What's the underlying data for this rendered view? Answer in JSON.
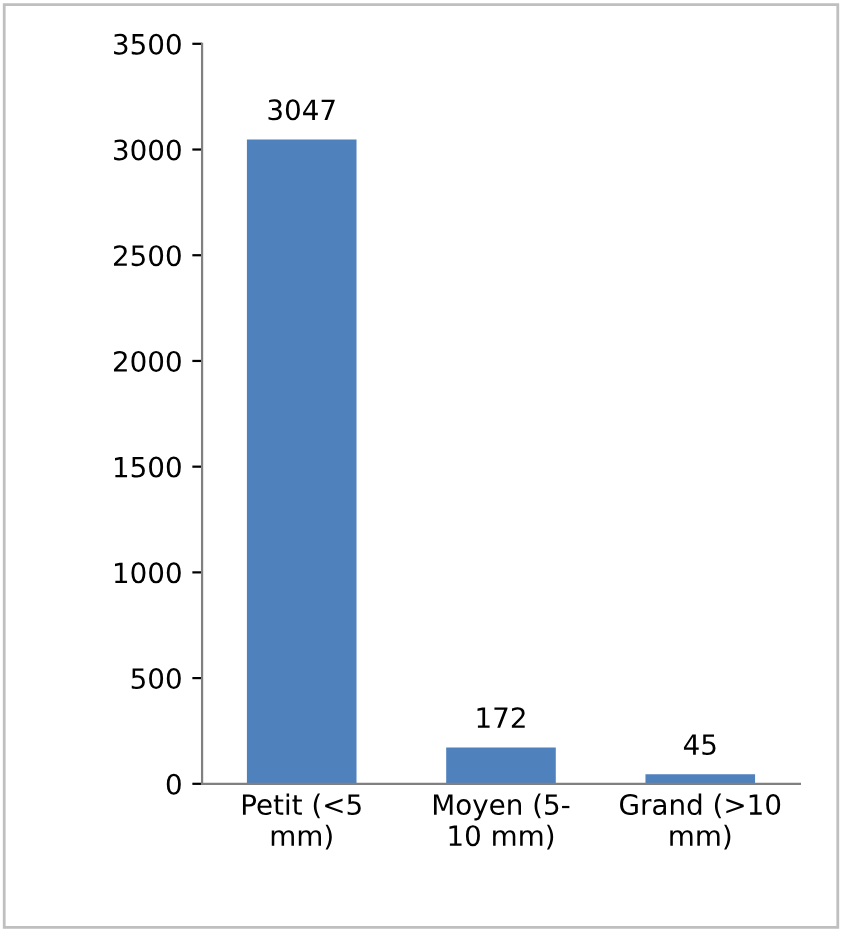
{
  "chart_data": {
    "type": "bar",
    "categories": [
      "Petit (<5\nmm)",
      "Moyen (5-\n10 mm)",
      "Grand (>10\nmm)"
    ],
    "values": [
      3047,
      172,
      45
    ],
    "color": "#4f81bd",
    "ylim": [
      0,
      3500
    ],
    "yticks": [
      0,
      500,
      1000,
      1500,
      2000,
      2500,
      3000,
      3500
    ],
    "data_labels": true,
    "grid": false,
    "legend": false
  }
}
